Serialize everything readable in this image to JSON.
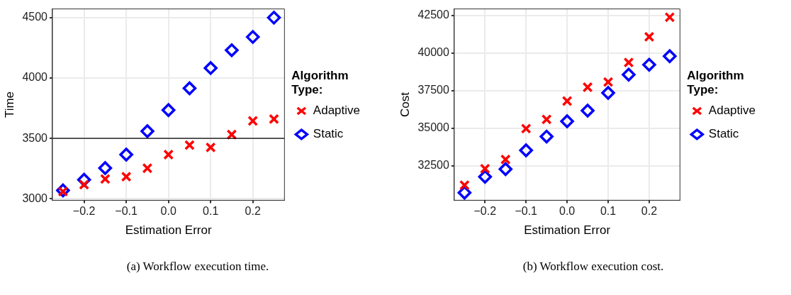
{
  "chart_data": [
    {
      "type": "scatter",
      "xlabel": "Estimation Error",
      "ylabel": "Time",
      "legend_title": "Algorithm Type:",
      "annotations": [
        "(a) Workflow execution time."
      ],
      "x": [
        -0.25,
        -0.2,
        -0.15,
        -0.1,
        -0.05,
        0.0,
        0.05,
        0.1,
        0.15,
        0.2,
        0.25
      ],
      "series": [
        {
          "name": "Adaptive",
          "color": "#ff0000",
          "marker": "cross",
          "values": [
            3060,
            3117,
            3164,
            3183,
            3253,
            3366,
            3445,
            3426,
            3532,
            3645,
            3660
          ]
        },
        {
          "name": "Static",
          "color": "#0000ff",
          "marker": "diamond",
          "values": [
            3070,
            3158,
            3255,
            3366,
            3560,
            3734,
            3915,
            4083,
            4230,
            4340,
            4500
          ]
        }
      ],
      "xlim": [
        -0.275,
        0.275
      ],
      "xticks": [
        {
          "value": -0.2,
          "label": "−0.2"
        },
        {
          "value": -0.1,
          "label": "−0.1"
        },
        {
          "value": 0,
          "label": "0.0"
        },
        {
          "value": 0.1,
          "label": "0.1"
        },
        {
          "value": 0.2,
          "label": "0.2"
        }
      ],
      "ylim": [
        2988,
        4572
      ],
      "yticks": [
        3000,
        3500,
        4000,
        4500
      ],
      "ref_lines": [
        {
          "axis": "y",
          "value": 3500,
          "color": "#000000"
        }
      ],
      "grid": true,
      "legend": "right"
    },
    {
      "type": "scatter",
      "xlabel": "Estimation Error",
      "ylabel": "Cost",
      "legend_title": "Algorithm Type:",
      "annotations": [
        "(b) Workflow execution cost."
      ],
      "x": [
        -0.25,
        -0.2,
        -0.15,
        -0.1,
        -0.05,
        0.0,
        0.05,
        0.1,
        0.15,
        0.2,
        0.25
      ],
      "series": [
        {
          "name": "Adaptive",
          "color": "#ff0000",
          "marker": "cross",
          "values": [
            31220,
            32320,
            32930,
            34980,
            35590,
            36810,
            37730,
            38080,
            39370,
            41080,
            42380
          ]
        },
        {
          "name": "Static",
          "color": "#0000ff",
          "marker": "diamond",
          "values": [
            30720,
            31780,
            32290,
            33540,
            34450,
            35470,
            36170,
            37350,
            38570,
            39220,
            39790
          ]
        }
      ],
      "xlim": [
        -0.275,
        0.275
      ],
      "xticks": [
        {
          "value": -0.2,
          "label": "−0.2"
        },
        {
          "value": -0.1,
          "label": "−0.1"
        },
        {
          "value": 0,
          "label": "0.0"
        },
        {
          "value": 0.1,
          "label": "0.1"
        },
        {
          "value": 0.2,
          "label": "0.2"
        }
      ],
      "ylim": [
        30220,
        42930
      ],
      "yticks": [
        32500,
        35000,
        37500,
        40000,
        42500
      ],
      "grid": true,
      "legend": "right"
    }
  ]
}
